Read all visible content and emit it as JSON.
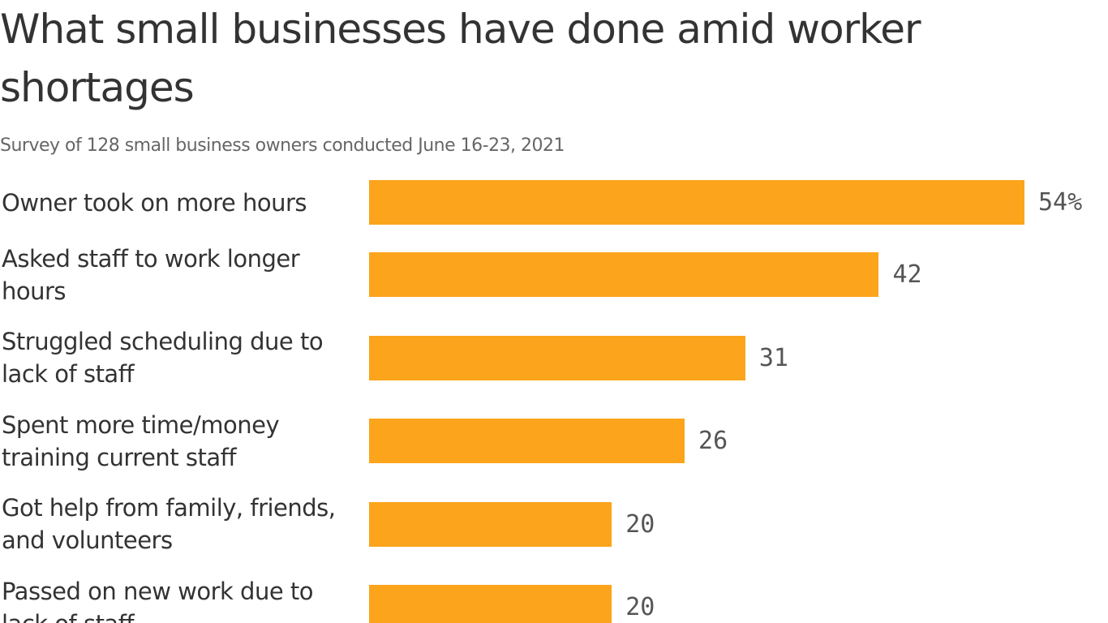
{
  "chart_data": {
    "type": "bar",
    "orientation": "horizontal",
    "title": "What small businesses have done amid worker shortages",
    "subtitle": "Survey of 128 small business owners conducted June 16-23, 2021",
    "categories": [
      "Owner took on more hours",
      "Asked staff to work longer hours",
      "Struggled scheduling due to lack of staff",
      "Spent more time/money training current staff",
      "Got help from family, friends, and volunteers",
      "Passed on new work due to lack of staff"
    ],
    "values": [
      54,
      42,
      31,
      26,
      20,
      20
    ],
    "value_labels": [
      "54%",
      "42",
      "31",
      "26",
      "20",
      "20"
    ],
    "color": "#fca41b"
  }
}
